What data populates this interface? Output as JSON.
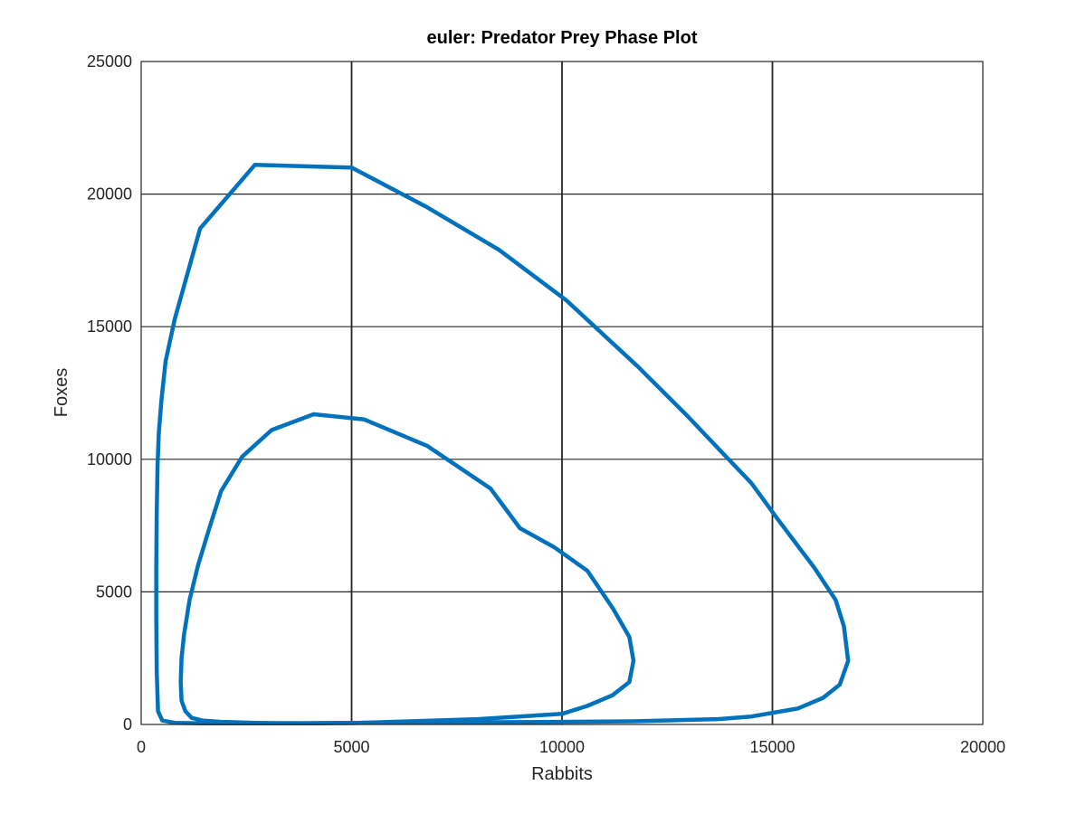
{
  "chart_data": {
    "type": "line",
    "title": "euler: Predator Prey Phase Plot",
    "xlabel": "Rabbits",
    "ylabel": "Foxes",
    "xlim": [
      0,
      20000
    ],
    "ylim": [
      0,
      25000
    ],
    "x_ticks": [
      0,
      5000,
      10000,
      15000,
      20000
    ],
    "y_ticks": [
      0,
      5000,
      10000,
      15000,
      20000,
      25000
    ],
    "x_tick_labels": [
      "0",
      "5000",
      "10000",
      "15000",
      "20000"
    ],
    "y_tick_labels": [
      "0",
      "5000",
      "10000",
      "15000",
      "20000",
      "25000"
    ],
    "grid": true,
    "series_color": "#0072BD",
    "series": [
      {
        "x": [
          5000,
          8000,
          10000,
          10600,
          11200,
          11600,
          11700,
          11600,
          11200,
          10600,
          9800,
          9000,
          8300,
          6800,
          5300,
          4100,
          3100,
          2400,
          1900,
          1600,
          1350,
          1150,
          1020,
          960,
          940,
          960,
          1050,
          1200,
          1450,
          1900,
          2700,
          3800,
          5000
        ],
        "y": [
          50,
          200,
          400,
          700,
          1100,
          1600,
          2400,
          3300,
          4400,
          5800,
          6700,
          7400,
          8900,
          10500,
          11500,
          11700,
          11100,
          10100,
          8800,
          7300,
          6000,
          4700,
          3400,
          2500,
          1600,
          900,
          500,
          250,
          150,
          100,
          60,
          40,
          50
        ]
      },
      {
        "x": [
          5000,
          9000,
          11700,
          13700,
          14500,
          15600,
          16200,
          16600,
          16800,
          16700,
          16500,
          16000,
          15100,
          14500,
          13900,
          13000,
          11800,
          10100,
          8500,
          6800,
          5000,
          2700,
          1400,
          800,
          580,
          480,
          420,
          390,
          370,
          360,
          360,
          370,
          400,
          500,
          800,
          1500,
          3000,
          5000
        ],
        "y": [
          60,
          90,
          120,
          200,
          300,
          600,
          1000,
          1500,
          2400,
          3700,
          4700,
          5900,
          7800,
          9100,
          10100,
          11600,
          13500,
          16000,
          17900,
          19500,
          21000,
          21100,
          18700,
          15300,
          13700,
          12200,
          11000,
          9800,
          8000,
          6000,
          4000,
          2000,
          500,
          150,
          60,
          40,
          40,
          60
        ]
      }
    ]
  }
}
